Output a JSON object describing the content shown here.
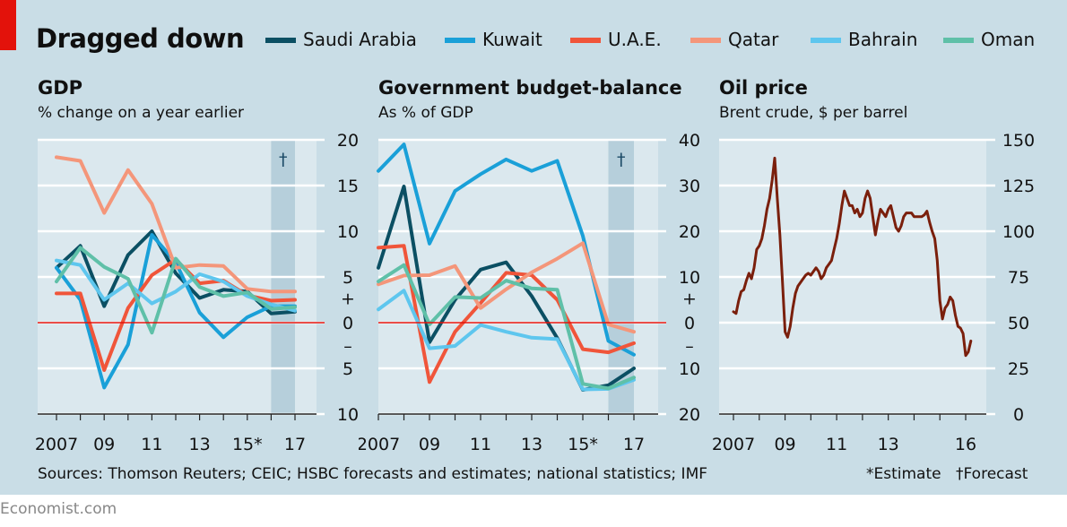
{
  "header": {
    "title": "Dragged down",
    "legend": [
      {
        "name": "Saudi Arabia",
        "color": "#0b4f63"
      },
      {
        "name": "Kuwait",
        "color": "#1aa0d8"
      },
      {
        "name": "U.A.E.",
        "color": "#f0553a"
      },
      {
        "name": "Qatar",
        "color": "#f4967a"
      },
      {
        "name": "Bahrain",
        "color": "#5ec6ee"
      },
      {
        "name": "Oman",
        "color": "#5fc0a8"
      }
    ]
  },
  "chart_data": [
    {
      "type": "line",
      "title": "GDP",
      "subtitle": "% change on a year earlier",
      "x": [
        2007,
        2008,
        2009,
        2010,
        2011,
        2012,
        2013,
        2014,
        2015,
        2016,
        2017
      ],
      "xtick_labels": [
        "2007",
        "09",
        "11",
        "13",
        "15*",
        "17"
      ],
      "xticks": [
        2007,
        2009,
        2011,
        2013,
        2015,
        2017
      ],
      "xlim": [
        2006.5,
        2017.5
      ],
      "ylim": [
        -10,
        20
      ],
      "yticks": [
        20,
        15,
        10,
        5,
        0,
        -5,
        -10
      ],
      "ytick_labels": [
        "20",
        "15",
        "10",
        "5",
        "0",
        "5",
        "10"
      ],
      "sign_labels": [
        "+",
        "–"
      ],
      "forecast_band": [
        2016,
        2017
      ],
      "forecast_mark": "†",
      "zero_line": true,
      "series": [
        {
          "name": "Saudi Arabia",
          "color": "#0b4f63",
          "values": [
            6.0,
            8.4,
            1.8,
            7.4,
            10.0,
            5.4,
            2.7,
            3.6,
            3.4,
            1.0,
            1.2
          ]
        },
        {
          "name": "Kuwait",
          "color": "#1aa0d8",
          "values": [
            6.0,
            2.5,
            -7.1,
            -2.4,
            9.6,
            6.6,
            1.1,
            -1.6,
            0.6,
            1.8,
            1.8
          ]
        },
        {
          "name": "U.A.E.",
          "color": "#f0553a",
          "values": [
            3.2,
            3.2,
            -5.2,
            1.6,
            5.2,
            6.9,
            4.3,
            4.6,
            3.0,
            2.4,
            2.5
          ]
        },
        {
          "name": "Qatar",
          "color": "#f4967a",
          "values": [
            18.1,
            17.7,
            12.0,
            16.7,
            13.0,
            6.0,
            6.3,
            6.2,
            3.7,
            3.4,
            3.4
          ]
        },
        {
          "name": "Bahrain",
          "color": "#5ec6ee",
          "values": [
            6.8,
            6.3,
            2.5,
            4.3,
            2.1,
            3.4,
            5.3,
            4.5,
            2.9,
            2.0,
            1.3
          ]
        },
        {
          "name": "Oman",
          "color": "#5fc0a8",
          "values": [
            4.5,
            8.2,
            6.1,
            4.8,
            -1.1,
            7.0,
            3.9,
            2.9,
            3.3,
            1.5,
            1.7
          ]
        }
      ]
    },
    {
      "type": "line",
      "title": "Government budget-balance",
      "subtitle": "As % of GDP",
      "x": [
        2007,
        2008,
        2009,
        2010,
        2011,
        2012,
        2013,
        2014,
        2015,
        2016,
        2017
      ],
      "xtick_labels": [
        "2007",
        "09",
        "11",
        "13",
        "15*",
        "17"
      ],
      "xticks": [
        2007,
        2009,
        2011,
        2013,
        2015,
        2017
      ],
      "xlim": [
        2006.5,
        2017.5
      ],
      "ylim": [
        -20,
        40
      ],
      "yticks": [
        40,
        30,
        20,
        10,
        0,
        -10,
        -20
      ],
      "ytick_labels": [
        "40",
        "30",
        "20",
        "10",
        "0",
        "10",
        "20"
      ],
      "sign_labels": [
        "+",
        "–"
      ],
      "forecast_band": [
        2016,
        2017
      ],
      "forecast_mark": "†",
      "zero_line": true,
      "series": [
        {
          "name": "Saudi Arabia",
          "color": "#0b4f63",
          "values": [
            12.0,
            29.8,
            -4.3,
            5.0,
            11.6,
            13.2,
            5.8,
            -3.4,
            -14.7,
            -13.7,
            -10.0
          ]
        },
        {
          "name": "Kuwait",
          "color": "#1aa0d8",
          "values": [
            33.2,
            39.0,
            17.3,
            28.8,
            32.5,
            35.7,
            33.2,
            35.4,
            19.0,
            -4.0,
            -7.0
          ]
        },
        {
          "name": "U.A.E.",
          "color": "#f0553a",
          "values": [
            16.4,
            16.8,
            -13.0,
            -2.0,
            4.3,
            10.9,
            10.4,
            5.0,
            -5.8,
            -6.5,
            -4.5
          ]
        },
        {
          "name": "Qatar",
          "color": "#f4967a",
          "values": [
            8.4,
            10.3,
            10.4,
            12.4,
            3.2,
            7.3,
            11.0,
            14.0,
            17.4,
            -0.4,
            -2.0
          ]
        },
        {
          "name": "Bahrain",
          "color": "#5ec6ee",
          "values": [
            2.9,
            7.0,
            -5.6,
            -5.1,
            -0.5,
            -2.0,
            -3.3,
            -3.6,
            -14.6,
            -14.5,
            -12.5
          ]
        },
        {
          "name": "Oman",
          "color": "#5fc0a8",
          "values": [
            9.0,
            12.6,
            -0.4,
            5.6,
            5.4,
            9.2,
            7.5,
            7.2,
            -13.4,
            -14.4,
            -12.0
          ]
        }
      ]
    },
    {
      "type": "line",
      "title": "Oil price",
      "subtitle": "Brent crude, $ per barrel",
      "xtick_labels": [
        "2007",
        "09",
        "11",
        "13",
        "16"
      ],
      "xticks": [
        2007,
        2009,
        2011,
        2013,
        2016
      ],
      "xlim": [
        2006.5,
        2016.5
      ],
      "ylim": [
        0,
        150
      ],
      "yticks": [
        150,
        125,
        100,
        75,
        50,
        25,
        0
      ],
      "ytick_labels": [
        "150",
        "125",
        "100",
        "75",
        "50",
        "25",
        "0"
      ],
      "series": [
        {
          "name": "Brent crude",
          "color": "#7a1f0c",
          "x": [
            2007.0,
            2007.1,
            2007.2,
            2007.3,
            2007.4,
            2007.5,
            2007.6,
            2007.7,
            2007.8,
            2007.9,
            2008.0,
            2008.1,
            2008.2,
            2008.3,
            2008.4,
            2008.5,
            2008.6,
            2008.7,
            2008.8,
            2008.9,
            2009.0,
            2009.1,
            2009.2,
            2009.3,
            2009.4,
            2009.5,
            2009.6,
            2009.7,
            2009.8,
            2009.9,
            2010.0,
            2010.1,
            2010.2,
            2010.3,
            2010.4,
            2010.5,
            2010.6,
            2010.7,
            2010.8,
            2010.9,
            2011.0,
            2011.1,
            2011.2,
            2011.3,
            2011.4,
            2011.5,
            2011.6,
            2011.7,
            2011.8,
            2011.9,
            2012.0,
            2012.1,
            2012.2,
            2012.3,
            2012.4,
            2012.5,
            2012.6,
            2012.7,
            2012.8,
            2012.9,
            2013.0,
            2013.1,
            2013.2,
            2013.3,
            2013.4,
            2013.5,
            2013.6,
            2013.7,
            2013.8,
            2013.9,
            2014.0,
            2014.1,
            2014.2,
            2014.3,
            2014.4,
            2014.5,
            2014.6,
            2014.7,
            2014.8,
            2014.9,
            2015.0,
            2015.1,
            2015.2,
            2015.3,
            2015.4,
            2015.5,
            2015.6,
            2015.7,
            2015.8,
            2015.9,
            2016.0,
            2016.1,
            2016.2
          ],
          "values": [
            56,
            55,
            62,
            67,
            68,
            73,
            77,
            74,
            80,
            90,
            92,
            96,
            103,
            112,
            118,
            128,
            140,
            118,
            98,
            72,
            45,
            42,
            48,
            58,
            66,
            70,
            72,
            74,
            76,
            77,
            76,
            78,
            80,
            78,
            74,
            76,
            80,
            82,
            84,
            90,
            96,
            104,
            114,
            122,
            118,
            114,
            114,
            110,
            112,
            108,
            110,
            118,
            122,
            118,
            108,
            98,
            106,
            112,
            110,
            108,
            112,
            114,
            108,
            102,
            100,
            103,
            108,
            110,
            110,
            110,
            108,
            108,
            108,
            108,
            109,
            111,
            105,
            100,
            96,
            84,
            62,
            52,
            58,
            60,
            64,
            62,
            54,
            48,
            47,
            44,
            32,
            34,
            40
          ]
        }
      ]
    }
  ],
  "footer": {
    "sources": "Sources: Thomson Reuters; CEIC; HSBC forecasts and estimates; national statistics; IMF",
    "estimate_note": "*Estimate",
    "forecast_note": "†Forecast",
    "brand": "Economist.com"
  }
}
